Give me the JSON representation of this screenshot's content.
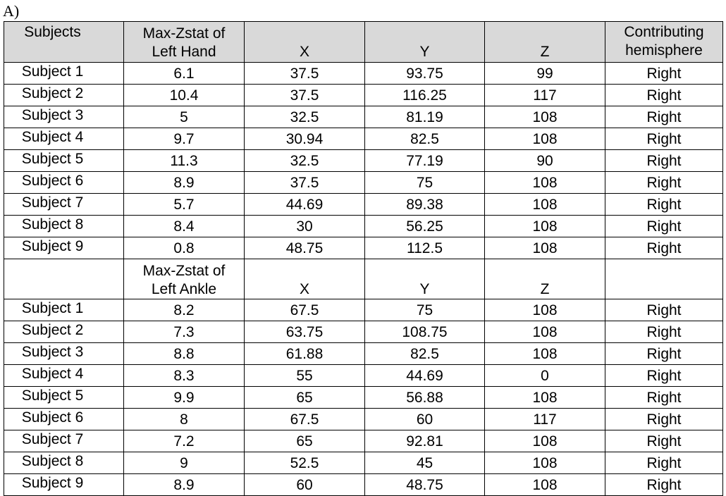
{
  "panel_label": "A)",
  "header": {
    "subjects": "Subjects",
    "metric_line1": "Max-Zstat of",
    "metric_line2": "Left Hand",
    "x": "X",
    "y": "Y",
    "z": "Z",
    "hemisphere_line1": "Contributing",
    "hemisphere_line2": "hemisphere"
  },
  "hand_rows": [
    {
      "subject": "Subject 1",
      "zstat": "6.1",
      "x": "37.5",
      "y": "93.75",
      "z": "99",
      "hemisphere": "Right"
    },
    {
      "subject": "Subject 2",
      "zstat": "10.4",
      "x": "37.5",
      "y": "116.25",
      "z": "117",
      "hemisphere": "Right"
    },
    {
      "subject": "Subject 3",
      "zstat": "5",
      "x": "32.5",
      "y": "81.19",
      "z": "108",
      "hemisphere": "Right"
    },
    {
      "subject": "Subject 4",
      "zstat": "9.7",
      "x": "30.94",
      "y": "82.5",
      "z": "108",
      "hemisphere": "Right"
    },
    {
      "subject": "Subject 5",
      "zstat": "11.3",
      "x": "32.5",
      "y": "77.19",
      "z": "90",
      "hemisphere": "Right"
    },
    {
      "subject": "Subject 6",
      "zstat": "8.9",
      "x": "37.5",
      "y": "75",
      "z": "108",
      "hemisphere": "Right"
    },
    {
      "subject": "Subject 7",
      "zstat": "5.7",
      "x": "44.69",
      "y": "89.38",
      "z": "108",
      "hemisphere": "Right"
    },
    {
      "subject": "Subject 8",
      "zstat": "8.4",
      "x": "30",
      "y": "56.25",
      "z": "108",
      "hemisphere": "Right"
    },
    {
      "subject": "Subject 9",
      "zstat": "0.8",
      "x": "48.75",
      "y": "112.5",
      "z": "108",
      "hemisphere": "Right"
    }
  ],
  "ankle_header": {
    "metric_line1": "Max-Zstat of",
    "metric_line2": "Left Ankle",
    "x": "X",
    "y": "Y",
    "z": "Z"
  },
  "ankle_rows": [
    {
      "subject": "Subject 1",
      "zstat": "8.2",
      "x": "67.5",
      "y": "75",
      "z": "108",
      "hemisphere": "Right"
    },
    {
      "subject": "Subject 2",
      "zstat": "7.3",
      "x": "63.75",
      "y": "108.75",
      "z": "108",
      "hemisphere": "Right"
    },
    {
      "subject": "Subject 3",
      "zstat": "8.8",
      "x": "61.88",
      "y": "82.5",
      "z": "108",
      "hemisphere": "Right"
    },
    {
      "subject": "Subject 4",
      "zstat": "8.3",
      "x": "55",
      "y": "44.69",
      "z": "0",
      "hemisphere": "Right"
    },
    {
      "subject": "Subject 5",
      "zstat": "9.9",
      "x": "65",
      "y": "56.88",
      "z": "108",
      "hemisphere": "Right"
    },
    {
      "subject": "Subject 6",
      "zstat": "8",
      "x": "67.5",
      "y": "60",
      "z": "117",
      "hemisphere": "Right"
    },
    {
      "subject": "Subject 7",
      "zstat": "7.2",
      "x": "65",
      "y": "92.81",
      "z": "108",
      "hemisphere": "Right"
    },
    {
      "subject": "Subject 8",
      "zstat": "9",
      "x": "52.5",
      "y": "45",
      "z": "108",
      "hemisphere": "Right"
    },
    {
      "subject": "Subject 9",
      "zstat": "8.9",
      "x": "60",
      "y": "48.75",
      "z": "108",
      "hemisphere": "Right"
    }
  ]
}
